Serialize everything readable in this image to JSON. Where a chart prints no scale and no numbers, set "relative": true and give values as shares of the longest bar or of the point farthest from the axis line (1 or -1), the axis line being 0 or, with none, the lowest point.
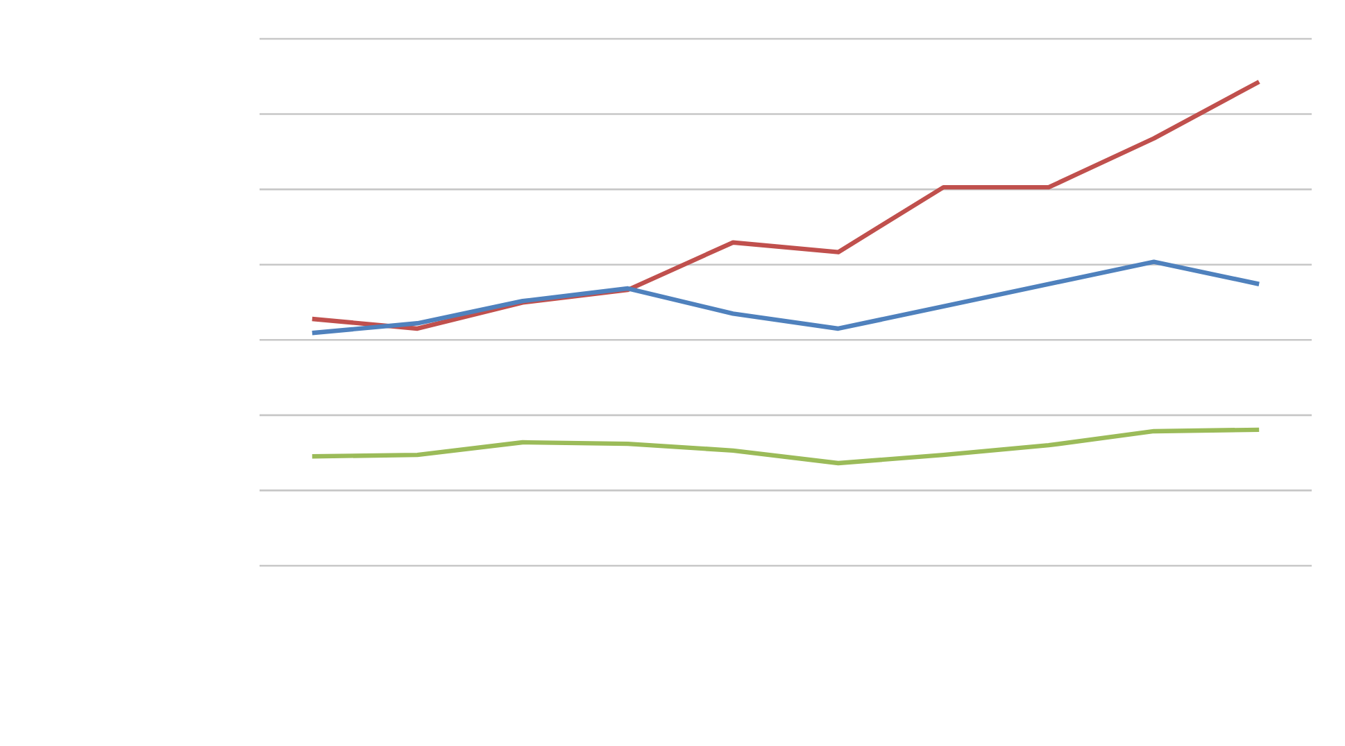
{
  "chart_data": {
    "type": "line",
    "relative": true,
    "categories": [
      null,
      null,
      null,
      null,
      null,
      null,
      null,
      null,
      null,
      null
    ],
    "grid": "y",
    "marker": "none",
    "line_style": "solid",
    "series": [
      {
        "color": "#c0504d",
        "values": [
          0.51,
          0.49,
          0.544,
          0.57,
          0.668,
          0.648,
          0.782,
          0.782,
          0.883,
          1
        ]
      },
      {
        "color": "#4f81bd",
        "values": [
          0.481,
          0.501,
          0.547,
          0.573,
          0.521,
          0.49,
          0.536,
          0.582,
          0.628,
          0.582
        ]
      },
      {
        "color": "#9bbb59",
        "values": [
          0.226,
          0.229,
          0.255,
          0.252,
          0.238,
          0.212,
          0.229,
          0.249,
          0.278,
          0.281
        ]
      }
    ]
  }
}
